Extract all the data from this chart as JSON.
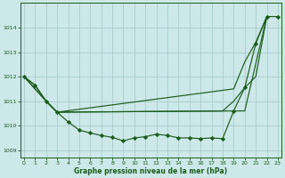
{
  "bg_color": "#cce8e8",
  "grid_color": "#aacccc",
  "line_color": "#1a5c1a",
  "xlabel": "Graphe pression niveau de la mer (hPa)",
  "ylim": [
    1008.7,
    1015.0
  ],
  "xlim": [
    -0.3,
    23.3
  ],
  "yticks": [
    1009,
    1010,
    1011,
    1012,
    1013,
    1014
  ],
  "xticks": [
    0,
    1,
    2,
    3,
    4,
    5,
    6,
    7,
    8,
    9,
    10,
    11,
    12,
    13,
    14,
    15,
    16,
    17,
    18,
    19,
    20,
    21,
    22,
    23
  ],
  "y_main": [
    1012.0,
    1011.65,
    1011.0,
    1010.55,
    1010.15,
    1009.82,
    1009.7,
    1009.6,
    1009.52,
    1009.38,
    1009.5,
    1009.55,
    1009.65,
    1009.6,
    1009.5,
    1009.5,
    1009.47,
    1009.5,
    1009.47,
    1010.6,
    1011.55,
    1013.35,
    1014.45,
    1014.45
  ],
  "x_line2": [
    0,
    1,
    2,
    3,
    19,
    20,
    21,
    22
  ],
  "y_line2": [
    1012.0,
    1011.65,
    1011.0,
    1010.55,
    1011.5,
    1012.6,
    1013.4,
    1014.45
  ],
  "x_line3": [
    0,
    2,
    3,
    18,
    19,
    20,
    21,
    22
  ],
  "y_line3": [
    1012.0,
    1011.0,
    1010.55,
    1010.6,
    1011.0,
    1011.55,
    1012.0,
    1014.45
  ],
  "x_line4": [
    0,
    2,
    3,
    19,
    20,
    22
  ],
  "y_line4": [
    1012.0,
    1011.0,
    1010.55,
    1010.6,
    1010.6,
    1014.45
  ]
}
